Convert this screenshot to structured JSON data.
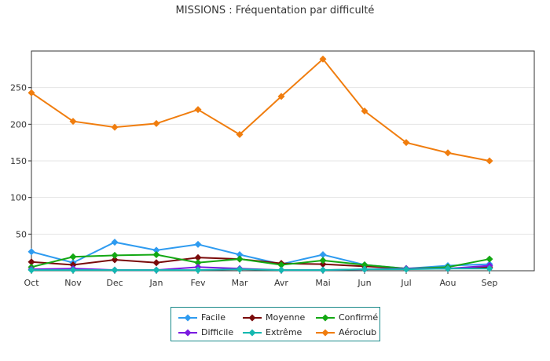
{
  "chart_data": {
    "type": "line",
    "title": "MISSIONS : Fréquentation par difficulté",
    "xlabel": "",
    "ylabel": "",
    "categories": [
      "Oct",
      "Nov",
      "Dec",
      "Jan",
      "Fev",
      "Mar",
      "Avr",
      "Mai",
      "Jun",
      "Jul",
      "Aou",
      "Sep"
    ],
    "ylim": [
      0,
      300
    ],
    "yticks": [
      50,
      100,
      150,
      200,
      250
    ],
    "grid": true,
    "legend_position": "bottom",
    "series": [
      {
        "name": "Facile",
        "color": "#2e9bf0",
        "values": [
          26,
          11,
          39,
          28,
          36,
          22,
          9,
          22,
          8,
          3,
          7,
          9
        ]
      },
      {
        "name": "Moyenne",
        "color": "#7a0a0a",
        "values": [
          12,
          8,
          15,
          11,
          18,
          16,
          10,
          9,
          6,
          3,
          3,
          5
        ]
      },
      {
        "name": "Confirmé",
        "color": "#13a813",
        "values": [
          5,
          19,
          21,
          22,
          11,
          16,
          8,
          14,
          8,
          3,
          5,
          16
        ]
      },
      {
        "name": "Difficile",
        "color": "#7a1ae0",
        "values": [
          2,
          3,
          1,
          1,
          5,
          3,
          1,
          1,
          2,
          3,
          3,
          7
        ]
      },
      {
        "name": "Extrême",
        "color": "#14b8b0",
        "values": [
          1,
          1,
          1,
          1,
          1,
          2,
          1,
          1,
          2,
          2,
          3,
          3
        ]
      },
      {
        "name": "Aéroclub",
        "color": "#f07d0e",
        "values": [
          243,
          204,
          196,
          201,
          220,
          186,
          238,
          289,
          218,
          175,
          161,
          150
        ]
      }
    ]
  }
}
